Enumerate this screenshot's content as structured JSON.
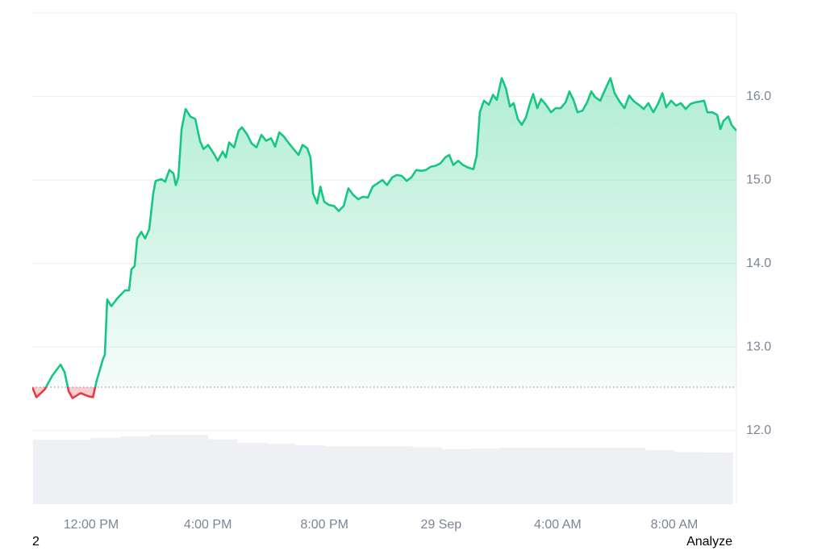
{
  "chart_data": {
    "type": "line",
    "x": [
      9.98,
      10.12,
      10.4,
      10.67,
      10.95,
      11.09,
      11.23,
      11.36,
      11.64,
      11.92,
      12.06,
      12.19,
      12.41,
      12.47,
      12.55,
      12.69,
      12.89,
      13.16,
      13.3,
      13.38,
      13.49,
      13.58,
      13.72,
      13.85,
      13.99,
      14.13,
      14.21,
      14.41,
      14.54,
      14.68,
      14.82,
      14.9,
      14.99,
      15.1,
      15.24,
      15.4,
      15.57,
      15.73,
      15.85,
      16.01,
      16.2,
      16.34,
      16.51,
      16.62,
      16.73,
      16.9,
      17.06,
      17.17,
      17.34,
      17.5,
      17.67,
      17.84,
      18.0,
      18.17,
      18.31,
      18.45,
      18.61,
      18.78,
      18.94,
      19.11,
      19.25,
      19.41,
      19.52,
      19.61,
      19.75,
      19.86,
      19.99,
      20.16,
      20.33,
      20.49,
      20.66,
      20.82,
      20.99,
      21.16,
      21.32,
      21.49,
      21.65,
      21.82,
      21.99,
      22.15,
      22.32,
      22.48,
      22.65,
      22.82,
      22.98,
      23.15,
      23.31,
      23.48,
      23.65,
      23.81,
      23.98,
      24.14,
      24.28,
      24.42,
      24.59,
      24.75,
      24.92,
      25.11,
      25.22,
      25.33,
      25.47,
      25.64,
      25.78,
      25.91,
      26.08,
      26.22,
      26.36,
      26.49,
      26.63,
      26.77,
      26.91,
      27.05,
      27.16,
      27.3,
      27.43,
      27.6,
      27.77,
      27.93,
      28.1,
      28.27,
      28.4,
      28.54,
      28.68,
      28.85,
      29.01,
      29.15,
      29.29,
      29.46,
      29.62,
      29.81,
      29.95,
      30.12,
      30.29,
      30.45,
      30.62,
      30.78,
      30.95,
      31.11,
      31.28,
      31.45,
      31.59,
      31.72,
      31.89,
      32.06,
      32.22,
      32.39,
      32.55,
      32.72,
      32.89,
      33.02,
      33.13,
      33.3,
      33.47,
      33.58,
      33.69,
      33.85,
      33.96,
      34.13
    ],
    "series": [
      {
        "color": "#16c784",
        "values": [
          12.52,
          12.4,
          12.49,
          12.66,
          12.79,
          12.7,
          12.47,
          12.39,
          12.45,
          12.41,
          12.4,
          12.6,
          12.86,
          12.91,
          13.57,
          13.49,
          13.58,
          13.68,
          13.68,
          13.93,
          13.97,
          14.3,
          14.38,
          14.3,
          14.41,
          14.84,
          14.99,
          15.01,
          14.98,
          15.12,
          15.08,
          14.94,
          15.03,
          15.61,
          15.85,
          15.76,
          15.73,
          15.47,
          15.37,
          15.42,
          15.32,
          15.23,
          15.34,
          15.27,
          15.45,
          15.39,
          15.59,
          15.63,
          15.55,
          15.44,
          15.39,
          15.54,
          15.47,
          15.5,
          15.4,
          15.57,
          15.52,
          15.44,
          15.37,
          15.3,
          15.42,
          15.38,
          15.27,
          14.84,
          14.72,
          14.92,
          14.74,
          14.7,
          14.69,
          14.63,
          14.69,
          14.9,
          14.82,
          14.77,
          14.8,
          14.79,
          14.92,
          14.96,
          15.0,
          14.94,
          15.03,
          15.06,
          15.05,
          14.99,
          15.03,
          15.12,
          15.11,
          15.12,
          15.16,
          15.17,
          15.2,
          15.27,
          15.3,
          15.18,
          15.23,
          15.18,
          15.15,
          15.13,
          15.29,
          15.81,
          15.95,
          15.9,
          16.02,
          15.96,
          16.22,
          16.1,
          15.88,
          15.92,
          15.73,
          15.66,
          15.75,
          15.92,
          16.03,
          15.86,
          15.97,
          15.9,
          15.81,
          15.86,
          15.86,
          15.93,
          16.06,
          15.96,
          15.81,
          15.83,
          15.93,
          16.06,
          15.99,
          15.95,
          16.08,
          16.22,
          16.04,
          15.94,
          15.86,
          16.01,
          15.94,
          15.9,
          15.85,
          15.92,
          15.81,
          15.92,
          16.04,
          15.87,
          15.95,
          15.89,
          15.92,
          15.85,
          15.91,
          15.93,
          15.94,
          15.95,
          15.81,
          15.81,
          15.78,
          15.61,
          15.71,
          15.76,
          15.66,
          15.59
        ]
      },
      {
        "axis": "y2",
        "color": "#eef0f3",
        "x": [
          10.5,
          11.5,
          12.5,
          13.5,
          14.5,
          15.5,
          16.5,
          17.5,
          18.5,
          19.5,
          20.5,
          21.5,
          22.5,
          23.5,
          24.5,
          25.5,
          26.5,
          27.5,
          28.5,
          29.5,
          30.5,
          31.5,
          32.5,
          33.5
        ],
        "values": [
          13.1,
          13.1,
          13.5,
          13.8,
          14.1,
          14.1,
          13.2,
          12.5,
          12.3,
          12.0,
          11.8,
          11.8,
          11.8,
          11.6,
          11.2,
          11.3,
          11.5,
          11.5,
          11.5,
          11.5,
          11.5,
          11.0,
          10.6,
          10.5
        ]
      }
    ],
    "baseline": 12.52,
    "below_color": "#ea3943",
    "xlim": [
      9.98,
      34.13
    ],
    "xticks": [
      {
        "value": 12,
        "label": "12:00 PM"
      },
      {
        "value": 16,
        "label": "4:00 PM"
      },
      {
        "value": 20,
        "label": "8:00 PM"
      },
      {
        "value": 24,
        "label": "29 Sep"
      },
      {
        "value": 28,
        "label": "4:00 AM"
      },
      {
        "value": 32,
        "label": "8:00 AM"
      }
    ],
    "ylim": [
      11.12,
      17.0
    ],
    "yticks": [
      {
        "value": 12,
        "label": "12.0"
      },
      {
        "value": 13,
        "label": "13.0"
      },
      {
        "value": 14,
        "label": "14.0"
      },
      {
        "value": 15,
        "label": "15.0"
      },
      {
        "value": 16,
        "label": "16.0"
      }
    ],
    "y2lim": [
      0,
      100
    ],
    "grid": true
  },
  "footer": {
    "left": "2",
    "right": "Analyze"
  }
}
